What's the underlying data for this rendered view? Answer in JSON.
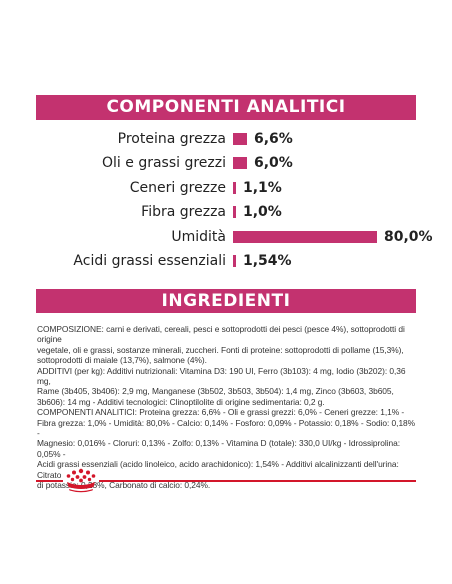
{
  "analitici": {
    "title": "COMPONENTI ANALITICI",
    "rows": [
      {
        "label": "Proteina grezza",
        "value": "6,6%",
        "fraction": 0.066
      },
      {
        "label": "Oli e grassi grezzi",
        "value": "6,0%",
        "fraction": 0.06
      },
      {
        "label": "Ceneri grezze",
        "value": "1,1%",
        "fraction": 0.011
      },
      {
        "label": "Fibra grezza",
        "value": "1,0%",
        "fraction": 0.01
      },
      {
        "label": "Umidità",
        "value": "80,0%",
        "fraction": 0.8
      },
      {
        "label": "Acidi grassi essenziali",
        "value": "1,54%",
        "fraction": 0.0154
      }
    ]
  },
  "ingredienti": {
    "title": "INGREDIENTI",
    "lines": [
      "COMPOSIZIONE: carni e derivati, cereali, pesci e sottoprodotti dei pesci (pesce 4%), sottoprodotti di origine",
      "vegetale, oli e grassi, sostanze minerali, zuccheri. Fonti di proteine: sottoprodotti di pollame (15,3%),",
      "sottoprodotti di maiale (13,7%), salmone (4%).",
      "ADDITIVI (per kg): Additivi nutrizionali: Vitamina D3: 190 UI, Ferro (3b103): 4 mg, Iodio (3b202): 0,36 mg,",
      "Rame (3b405, 3b406): 2,9 mg, Manganese (3b502, 3b503, 3b504): 1,4 mg, Zinco (3b603, 3b605,",
      "3b606): 14 mg - Additivi tecnologici: Clinoptilolite di origine sedimentaria: 0,2 g.",
      "COMPONENTI ANALITICI: Proteina grezza: 6,6% - Oli e grassi grezzi: 6,0% - Ceneri grezze: 1,1% -",
      "Fibra grezza: 1,0% - Umidità: 80,0% - Calcio: 0,14% - Fosforo: 0,09% - Potassio: 0,18% - Sodio: 0,18% -",
      "Magnesio: 0,016% - Cloruri: 0,13% - Zolfo: 0,13% - Vitamina D (totale): 330,0 UI/kg - Idrossiprolina: 0,05% -",
      "Acidi grassi essenziali (acido linoleico, acido arachidonico): 1,54% - Additivi alcalinizzanti dell'urina: Citrato",
      "di potassio: 0,28%, Carbonato di calcio: 0,24%."
    ]
  },
  "colors": {
    "accent": "#c3326f",
    "footer_red": "#d3162a"
  },
  "footer": {
    "logo_icon": "royal-canin-crown-icon"
  }
}
